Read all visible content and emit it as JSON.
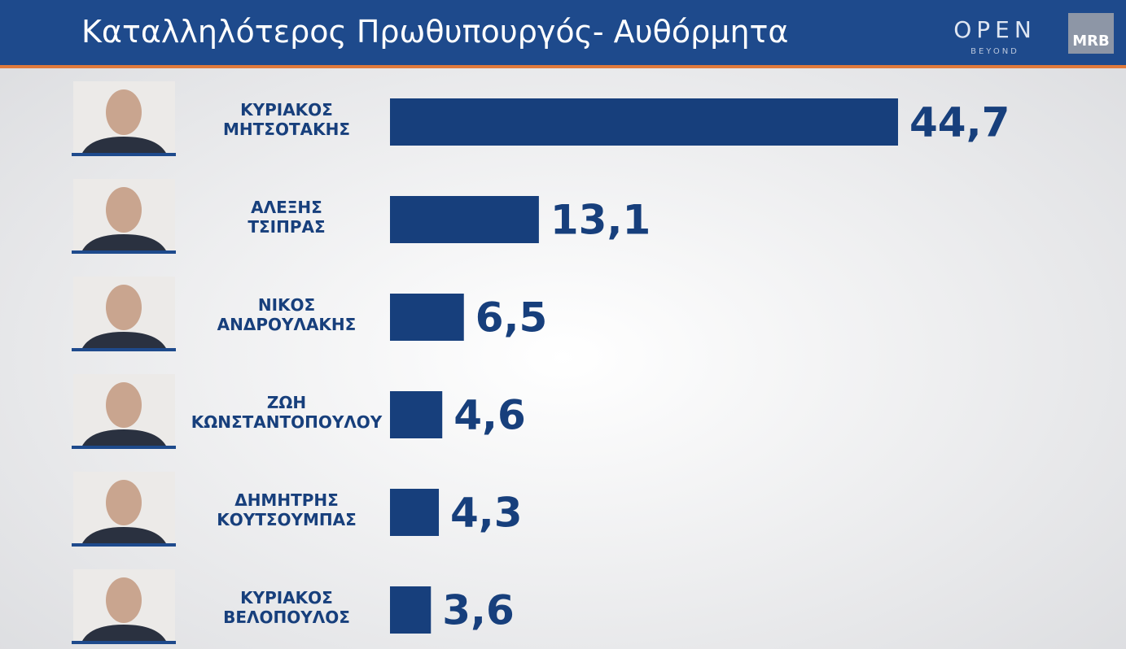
{
  "header": {
    "logo": "OPEN",
    "logo_sub": "BEYOND",
    "badge": "MRB"
  },
  "chart_data": {
    "type": "bar",
    "orientation": "horizontal",
    "title": "Καταλληλότερος Πρωθυπουργός- Αυθόρμητα",
    "categories": [
      [
        "ΚΥΡΙΑΚΟΣ",
        "ΜΗΤΣΟΤΑΚΗΣ"
      ],
      [
        "ΑΛΕΞΗΣ",
        "ΤΣΙΠΡΑΣ"
      ],
      [
        "ΝΙΚΟΣ",
        "ΑΝΔΡΟΥΛΑΚΗΣ"
      ],
      [
        "ΖΩΗ",
        "ΚΩΝΣΤΑΝΤΟΠΟΥΛΟΥ"
      ],
      [
        "ΔΗΜΗΤΡΗΣ",
        "ΚΟΥΤΣΟΥΜΠΑΣ"
      ],
      [
        "ΚΥΡΙΑΚΟΣ",
        "ΒΕΛΟΠΟΥΛΟΣ"
      ]
    ],
    "values": [
      44.7,
      13.1,
      6.5,
      4.6,
      4.3,
      3.6
    ],
    "value_labels": [
      "44,7",
      "13,1",
      "6,5",
      "4,6",
      "4,3",
      "3,6"
    ],
    "color": "#173f7c"
  }
}
